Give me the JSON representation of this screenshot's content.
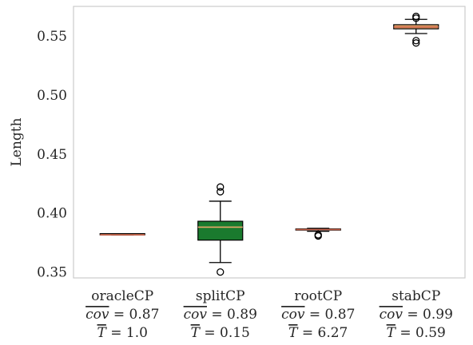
{
  "chart_data": {
    "type": "box",
    "ylabel": "Length",
    "ylim": [
      0.345,
      0.575
    ],
    "yticks": [
      0.35,
      0.4,
      0.45,
      0.5,
      0.55
    ],
    "ytick_labels": [
      "0.35",
      "0.40",
      "0.45",
      "0.50",
      "0.55"
    ],
    "grid": false,
    "categories": [
      {
        "name": "oracleCP",
        "cov_label": "= 0.87",
        "t_label": "= 1.0",
        "box_color": "#e9a86a",
        "median_color": "#c9624a",
        "whisker_low": 0.3815,
        "q1": 0.3815,
        "median": 0.3815,
        "q3": 0.3815,
        "whisker_high": 0.3815,
        "outliers": []
      },
      {
        "name": "splitCP",
        "cov_label": "= 0.89",
        "t_label": "= 0.15",
        "box_color": "#1a7a2e",
        "median_color": "#e9a86a",
        "whisker_low": 0.358,
        "q1": 0.377,
        "median": 0.388,
        "q3": 0.393,
        "whisker_high": 0.41,
        "outliers": [
          0.35,
          0.418,
          0.422
        ]
      },
      {
        "name": "rootCP",
        "cov_label": "= 0.87",
        "t_label": "= 6.27",
        "box_color": "#e9a86a",
        "median_color": "#c9624a",
        "whisker_low": 0.3845,
        "q1": 0.3855,
        "median": 0.386,
        "q3": 0.3865,
        "whisker_high": 0.387,
        "outliers": [
          0.3805,
          0.3815
        ]
      },
      {
        "name": "stabCP",
        "cov_label": "= 0.99",
        "t_label": "= 0.59",
        "box_color": "#e9a86a",
        "median_color": "#c9624a",
        "whisker_low": 0.552,
        "q1": 0.556,
        "median": 0.5575,
        "q3": 0.5595,
        "whisker_high": 0.564,
        "outliers": [
          0.544,
          0.546,
          0.565,
          0.5665
        ]
      }
    ],
    "cov_symbol": "cov",
    "t_symbol": "T"
  }
}
